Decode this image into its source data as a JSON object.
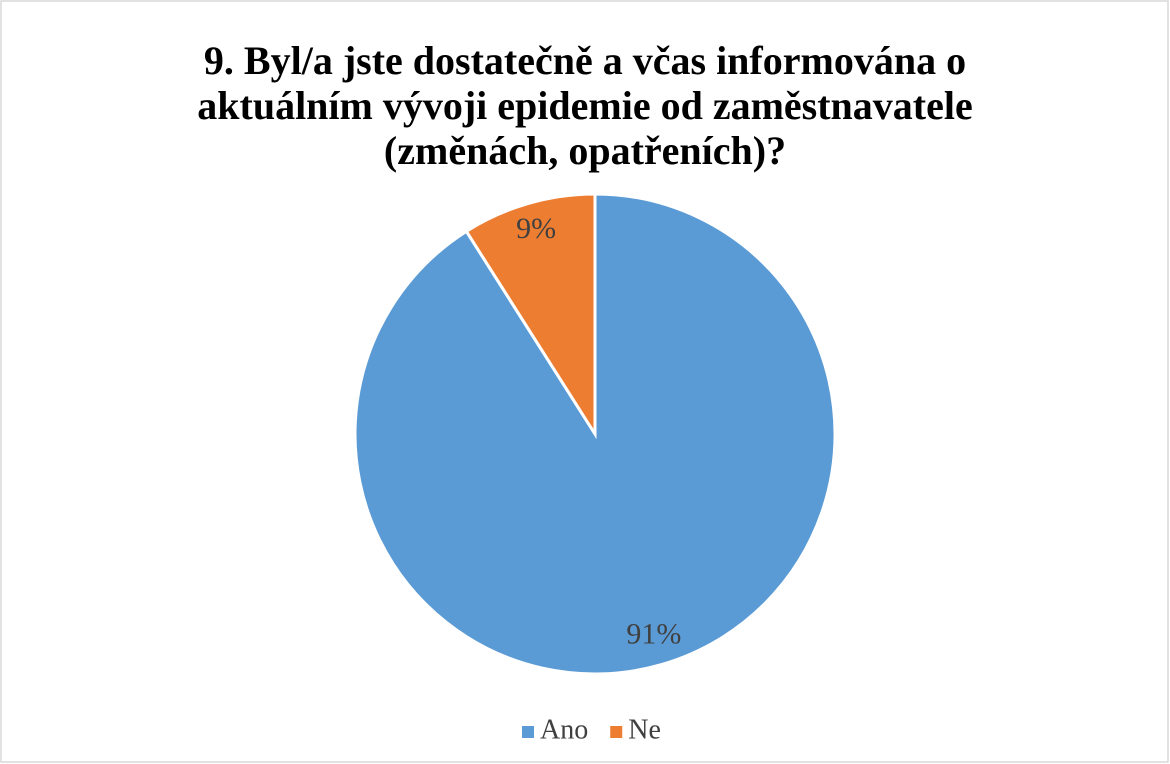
{
  "chart_data": {
    "type": "pie",
    "title": "9. Byl/a jste dostatečně a včas informována o aktuálním vývoji epidemie od zaměstnavatele (změnách, opatřeních)?",
    "categories": [
      "Ano",
      "Ne"
    ],
    "values": [
      91,
      9
    ],
    "value_labels": [
      "91%",
      "9%"
    ],
    "colors": [
      "#5b9bd5",
      "#ed7d31"
    ],
    "legend": "bottom"
  }
}
